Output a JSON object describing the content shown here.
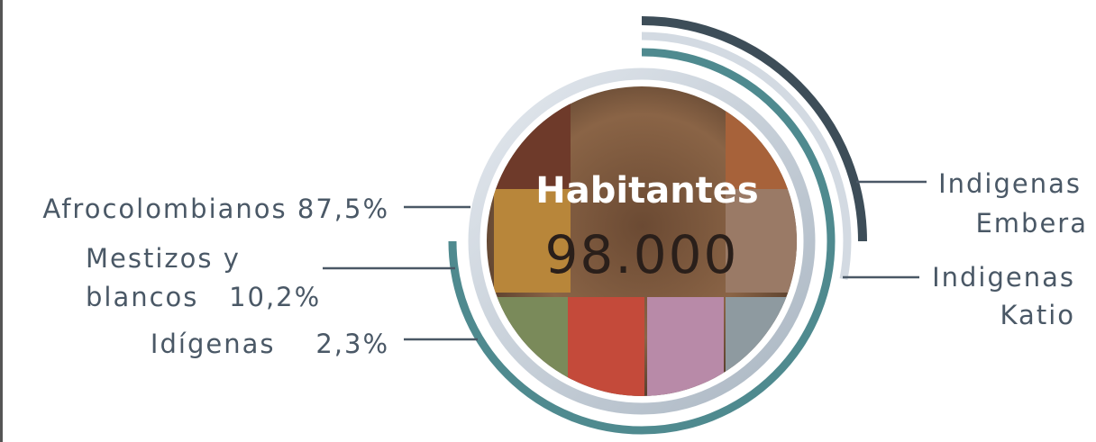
{
  "center": {
    "title": "Habitantes",
    "value": "98.000"
  },
  "left_labels": [
    "Afrocolombianos 87,5%",
    "Mestizos y",
    "blancos   10,2%",
    "Idígenas    2,3%"
  ],
  "right_labels": [
    {
      "line1": "Indigenas",
      "line2": "Embera"
    },
    {
      "line1": "Indigenas",
      "line2": "Katio"
    }
  ]
}
